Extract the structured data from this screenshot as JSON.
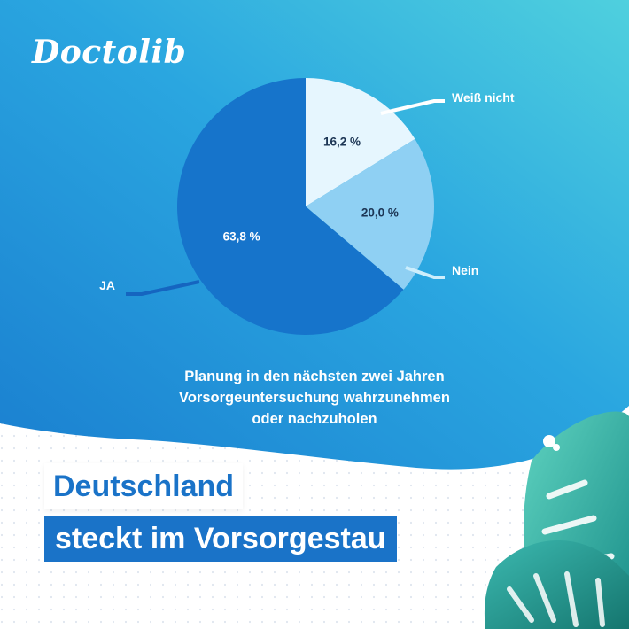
{
  "brand": {
    "logo_text": "Doctolib"
  },
  "chart_data": {
    "type": "pie",
    "title": "Planung in den nächsten zwei Jahren Vorsorgeuntersuchung wahrzunehmen oder nachzuholen",
    "slices": [
      {
        "label": "Weiß nicht",
        "value": 16.2,
        "value_label": "16,2 %",
        "color": "#e6f6fe"
      },
      {
        "label": "Nein",
        "value": 20.0,
        "value_label": "20,0 %",
        "color": "#8fd0f3"
      },
      {
        "label": "JA",
        "value": 63.8,
        "value_label": "63,8 %",
        "color": "#1674cb"
      }
    ],
    "start_angle_deg": 0,
    "direction": "clockwise"
  },
  "caption": {
    "line1": "Planung in den nächsten zwei Jahren",
    "line2": "Vorsorgeuntersuchung wahrzunehmen",
    "line3": "oder nachzuholen"
  },
  "headline": {
    "line1": "Deutschland",
    "line2": "steckt im Vorsorgestau"
  },
  "colors": {
    "gradient_top": "#44c8dd",
    "gradient_bottom": "#1a7fd0",
    "accent": "#1a73c8",
    "leaf_dark": "#1c9a8f",
    "leaf_light": "#3fc0b0"
  }
}
